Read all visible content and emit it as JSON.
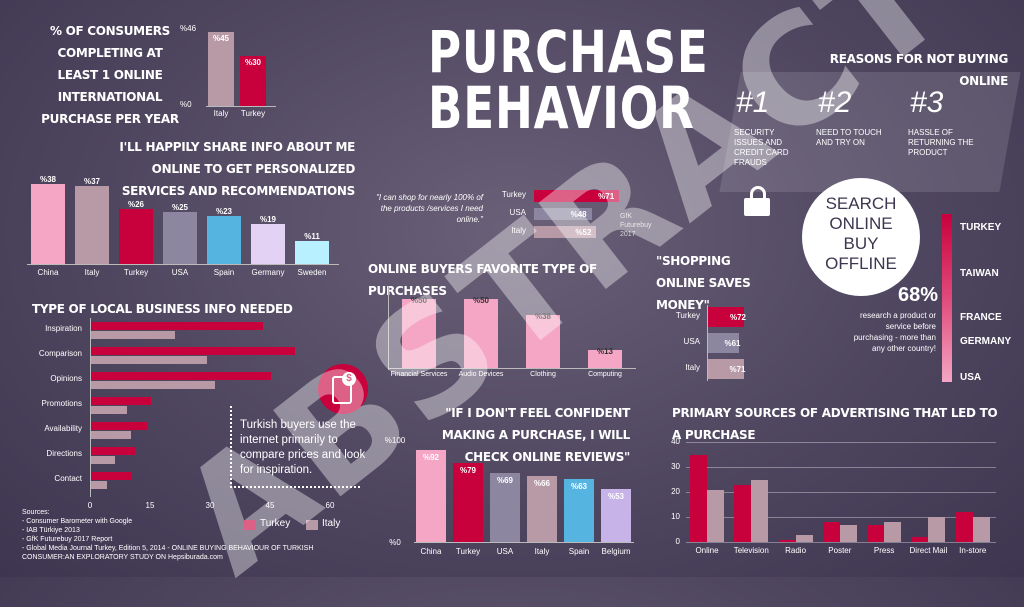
{
  "title_line1": "PURCHASE",
  "title_line2": "BEHAVIOR",
  "watermark": "ABSTRACT",
  "colors": {
    "turkey": "#c8003c",
    "italy": "#b89aa6",
    "usa": "#8c86a0",
    "china": "#f4a6c4",
    "spain": "#56b4e0",
    "germany": "#e4d2f5",
    "sweden": "#b8f0ff",
    "france": "#f4a6c4",
    "taiwan": "#e0507a"
  },
  "chart_data": [
    {
      "type": "bar",
      "title": "% OF CONSUMERS COMPLETING AT LEAST 1 ONLINE INTERNATIONAL PURCHASE PER YEAR",
      "categories": [
        "Italy",
        "Turkey"
      ],
      "values": [
        45,
        30
      ],
      "value_labels": [
        "%45",
        "%30"
      ],
      "ylim": [
        0,
        46
      ],
      "ytick_labels": [
        "%46",
        "%0"
      ]
    },
    {
      "type": "bar",
      "title": "I'LL HAPPILY SHARE INFO ABOUT ME ONLINE TO GET PERSONALIZED SERVICES AND RECOMMENDATIONS",
      "categories": [
        "China",
        "Italy",
        "Turkey",
        "USA",
        "Spain",
        "Germany",
        "Sweden"
      ],
      "values": [
        38,
        37,
        26,
        25,
        23,
        19,
        11
      ],
      "value_labels": [
        "%38",
        "%37",
        "%26",
        "%25",
        "%23",
        "%19",
        "%11"
      ],
      "ylim": [
        0,
        40
      ]
    },
    {
      "type": "bar",
      "orientation": "horizontal",
      "title": "TYPE OF LOCAL BUSINESS INFO NEEDED",
      "categories": [
        "Inspiration",
        "Comparison",
        "Opinions",
        "Promotions",
        "Availability",
        "Directions",
        "Contact"
      ],
      "series": [
        {
          "name": "Turkey",
          "values": [
            43,
            51,
            45,
            15,
            14,
            11,
            10
          ]
        },
        {
          "name": "Italy",
          "values": [
            21,
            29,
            31,
            9,
            10,
            6,
            4
          ]
        }
      ],
      "xticks": [
        "0",
        "15",
        "30",
        "45",
        "60"
      ],
      "xlim": [
        0,
        60
      ]
    },
    {
      "type": "bar",
      "orientation": "horizontal",
      "quote": "\"I can shop for nearly 100% of the products /services I need online.\"",
      "source": "GfK Futurebuy 2017",
      "categories": [
        "Turkey",
        "USA",
        "Italy"
      ],
      "values": [
        71,
        48,
        52
      ],
      "value_labels": [
        "%71",
        "%48",
        "%52"
      ],
      "xlim": [
        0,
        100
      ]
    },
    {
      "type": "bar",
      "title": "ONLINE BUYERS FAVORITE TYPE OF PURCHASES",
      "categories": [
        "Financial Services",
        "Audio Devices",
        "Clothing",
        "Computing"
      ],
      "values": [
        50,
        50,
        38,
        13
      ],
      "value_labels": [
        "%50",
        "%50",
        "%38",
        "%13"
      ],
      "ylim": [
        0,
        55
      ]
    },
    {
      "type": "bar",
      "orientation": "horizontal",
      "title": "\"SHOPPING ONLINE SAVES MONEY\"",
      "categories": [
        "Turkey",
        "USA",
        "Italy"
      ],
      "values": [
        72,
        61,
        71
      ],
      "value_labels": [
        "%72",
        "%61",
        "%71"
      ],
      "xlim": [
        0,
        100
      ]
    },
    {
      "type": "bar",
      "title": "\"IF I DON'T FEEL CONFIDENT MAKING A PURCHASE, I WILL CHECK ONLINE REVIEWS\"",
      "categories": [
        "China",
        "Turkey",
        "USA",
        "Italy",
        "Spain",
        "Belgium"
      ],
      "values": [
        92,
        79,
        69,
        66,
        63,
        53
      ],
      "value_labels": [
        "%92",
        "%79",
        "%69",
        "%66",
        "%63",
        "%53"
      ],
      "ylim": [
        0,
        100
      ],
      "ytick_labels": [
        "%100",
        "%0"
      ]
    },
    {
      "type": "bar",
      "title": "PRIMARY SOURCES OF ADVERTISING THAT LED TO A PURCHASE",
      "categories": [
        "Online",
        "Television",
        "Radio",
        "Poster",
        "Press",
        "Direct Mail",
        "In-store"
      ],
      "series": [
        {
          "name": "Turkey",
          "values": [
            35,
            23,
            1,
            8,
            7,
            2,
            12
          ]
        },
        {
          "name": "Italy",
          "values": [
            21,
            25,
            3,
            7,
            8,
            10,
            10
          ]
        }
      ],
      "ylim": [
        0,
        40
      ],
      "yticks": [
        "0",
        "10",
        "20",
        "30",
        "40"
      ]
    }
  ],
  "callout_turkish": "Turkish buyers use the internet primarily to compare prices and look for inspiration.",
  "legend": {
    "turkey": "Turkey",
    "italy": "Italy"
  },
  "reasons": {
    "title": "REASONS FOR NOT BUYING ONLINE",
    "items": [
      {
        "num": "#1",
        "text": "SECURITY ISSUES AND CREDIT CARD FRAUDS"
      },
      {
        "num": "#2",
        "text": "NEED TO TOUCH AND TRY ON"
      },
      {
        "num": "#3",
        "text": "HASSLE OF RETURNING THE PRODUCT"
      }
    ]
  },
  "search_circle": {
    "l1": "SEARCH",
    "l2": "ONLINE",
    "l3": "BUY",
    "l4": "OFFLINE"
  },
  "research": {
    "pct": "68%",
    "text": "research a product or service before purchasing - more than any other country!",
    "countries": [
      "TURKEY",
      "TAIWAN",
      "FRANCE",
      "GERMANY",
      "USA"
    ]
  },
  "sources": [
    "Sources:",
    "- Consumer Barometer with Google",
    "- IAB Türkiye 2013",
    "- GfK Futurebuy 2017 Report",
    "- Global Media Journal Turkey, Edition 5, 2014 - ONLINE BUYING BEHAVIOUR OF TURKISH",
    "CONSUMER:AN EXPLORATORY STUDY ON Hepsiburada.com"
  ]
}
